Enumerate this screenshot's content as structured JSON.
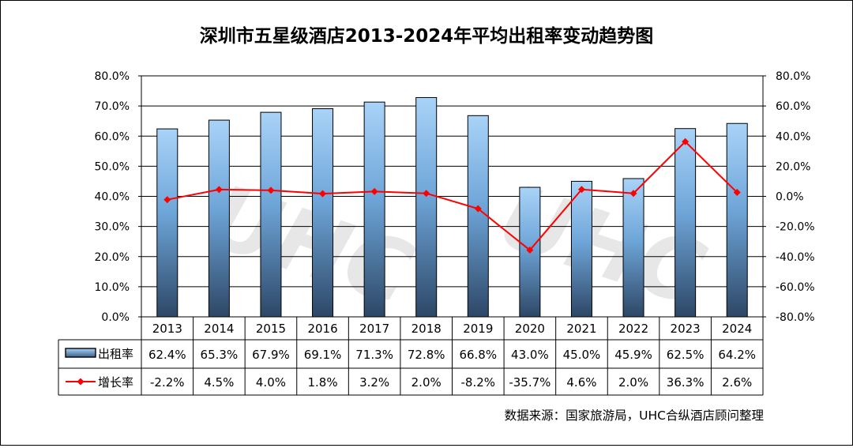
{
  "chart_data": {
    "type": "bar",
    "title": "深圳市五星级酒店2013-2024年平均出租率变动趋势图",
    "categories": [
      "2013",
      "2014",
      "2015",
      "2016",
      "2017",
      "2018",
      "2019",
      "2020",
      "2021",
      "2022",
      "2023",
      "2024"
    ],
    "series": [
      {
        "name": "出租率",
        "type": "bar",
        "axis": "left",
        "values": [
          62.4,
          65.3,
          67.9,
          69.1,
          71.3,
          72.8,
          66.8,
          43.0,
          45.0,
          45.9,
          62.5,
          64.2
        ],
        "labels": [
          "62.4%",
          "65.3%",
          "67.9%",
          "69.1%",
          "71.3%",
          "72.8%",
          "66.8%",
          "43.0%",
          "45.0%",
          "45.9%",
          "62.5%",
          "64.2%"
        ]
      },
      {
        "name": "增长率",
        "type": "line",
        "axis": "right",
        "color": "#ff0000",
        "values": [
          -2.2,
          4.5,
          4.0,
          1.8,
          3.2,
          2.0,
          -8.2,
          -35.7,
          4.6,
          2.0,
          36.3,
          2.6
        ],
        "labels": [
          "-2.2%",
          "4.5%",
          "4.0%",
          "1.8%",
          "3.2%",
          "2.0%",
          "-8.2%",
          "-35.7%",
          "4.6%",
          "2.0%",
          "36.3%",
          "2.6%"
        ]
      }
    ],
    "y_left": {
      "ylim": [
        0,
        80
      ],
      "ticks": [
        "0.0%",
        "10.0%",
        "20.0%",
        "30.0%",
        "40.0%",
        "50.0%",
        "60.0%",
        "70.0%",
        "80.0%"
      ]
    },
    "y_right": {
      "ylim": [
        -80,
        80
      ],
      "ticks": [
        "-80.0%",
        "-60.0%",
        "-40.0%",
        "-20.0%",
        "0.0%",
        "20.0%",
        "40.0%",
        "60.0%",
        "80.0%"
      ]
    },
    "grid": true,
    "legend": "data-table",
    "source": "数据来源：国家旅游局，UHC合纵酒店顾问整理"
  }
}
